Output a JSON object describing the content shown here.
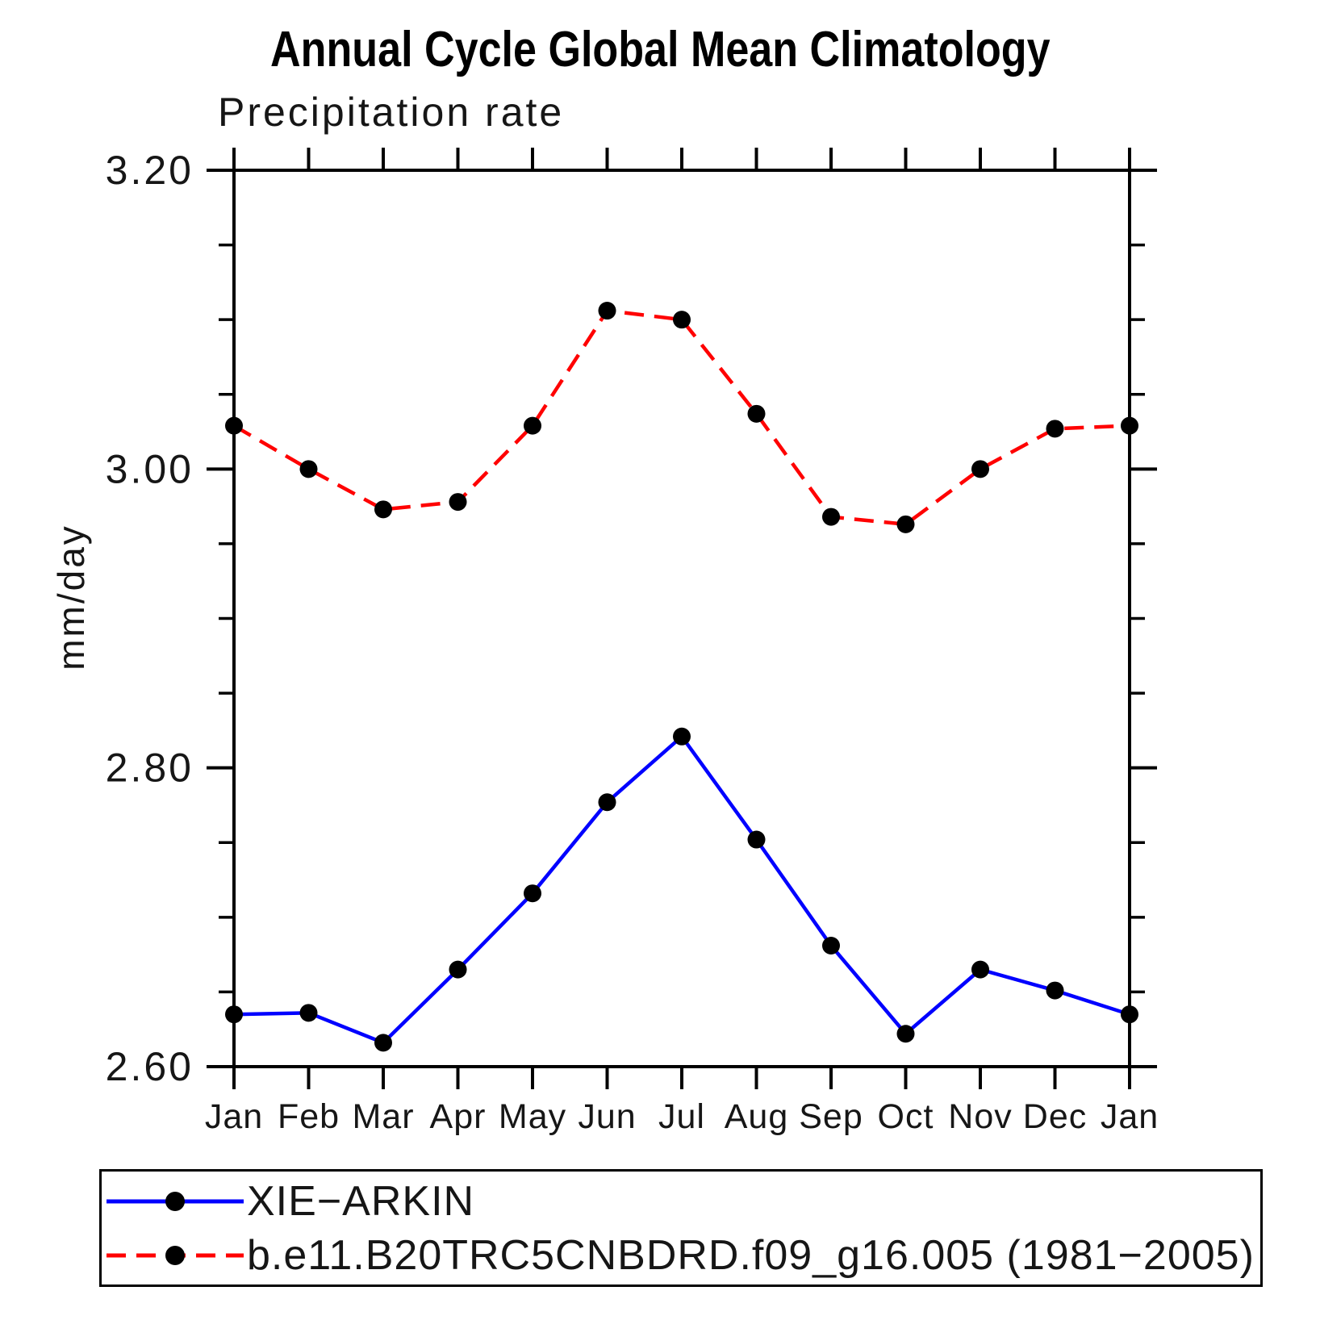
{
  "title": "Annual Cycle Global Mean Climatology",
  "subtitle": "Precipitation rate",
  "chart_data": {
    "type": "line",
    "title": "Annual Cycle Global Mean Climatology",
    "subtitle": "Precipitation rate",
    "ylabel": "mm/day",
    "xlabel": "",
    "x_categories": [
      "Jan",
      "Feb",
      "Mar",
      "Apr",
      "May",
      "Jun",
      "Jul",
      "Aug",
      "Sep",
      "Oct",
      "Nov",
      "Dec",
      "Jan"
    ],
    "ylim": [
      2.6,
      3.2
    ],
    "y_major_ticks": [
      2.6,
      2.8,
      3.0,
      3.2
    ],
    "y_major_labels": [
      "2.60",
      "2.80",
      "3.00",
      "3.20"
    ],
    "y_minor_step": 0.05,
    "grid": false,
    "legend_position": "bottom",
    "marker": {
      "shape": "circle",
      "color": "#000000"
    },
    "series": [
      {
        "key": "xie-arkin",
        "name": "XIE−ARKIN",
        "color": "#0000ff",
        "style": "solid",
        "values": [
          2.635,
          2.636,
          2.616,
          2.665,
          2.716,
          2.777,
          2.821,
          2.752,
          2.681,
          2.622,
          2.665,
          2.651,
          2.635
        ]
      },
      {
        "key": "model-b-e11",
        "name": "b.e11.B20TRC5CNBDRD.f09_g16.005 (1981−2005)",
        "color": "#ff0000",
        "style": "dashed",
        "values": [
          3.029,
          3.0,
          2.973,
          2.978,
          3.029,
          3.106,
          3.1,
          3.037,
          2.968,
          2.963,
          3.0,
          3.027,
          3.029
        ]
      }
    ]
  },
  "legend": {
    "items": [
      {
        "label": "XIE−ARKIN"
      },
      {
        "label": "b.e11.B20TRC5CNBDRD.f09_g16.005 (1981−2005)"
      }
    ]
  },
  "colors": {
    "xie_arkin_line": "#0000ff",
    "model_line": "#ff0000",
    "marker": "#000000",
    "axis": "#000000",
    "text": "#161616"
  }
}
